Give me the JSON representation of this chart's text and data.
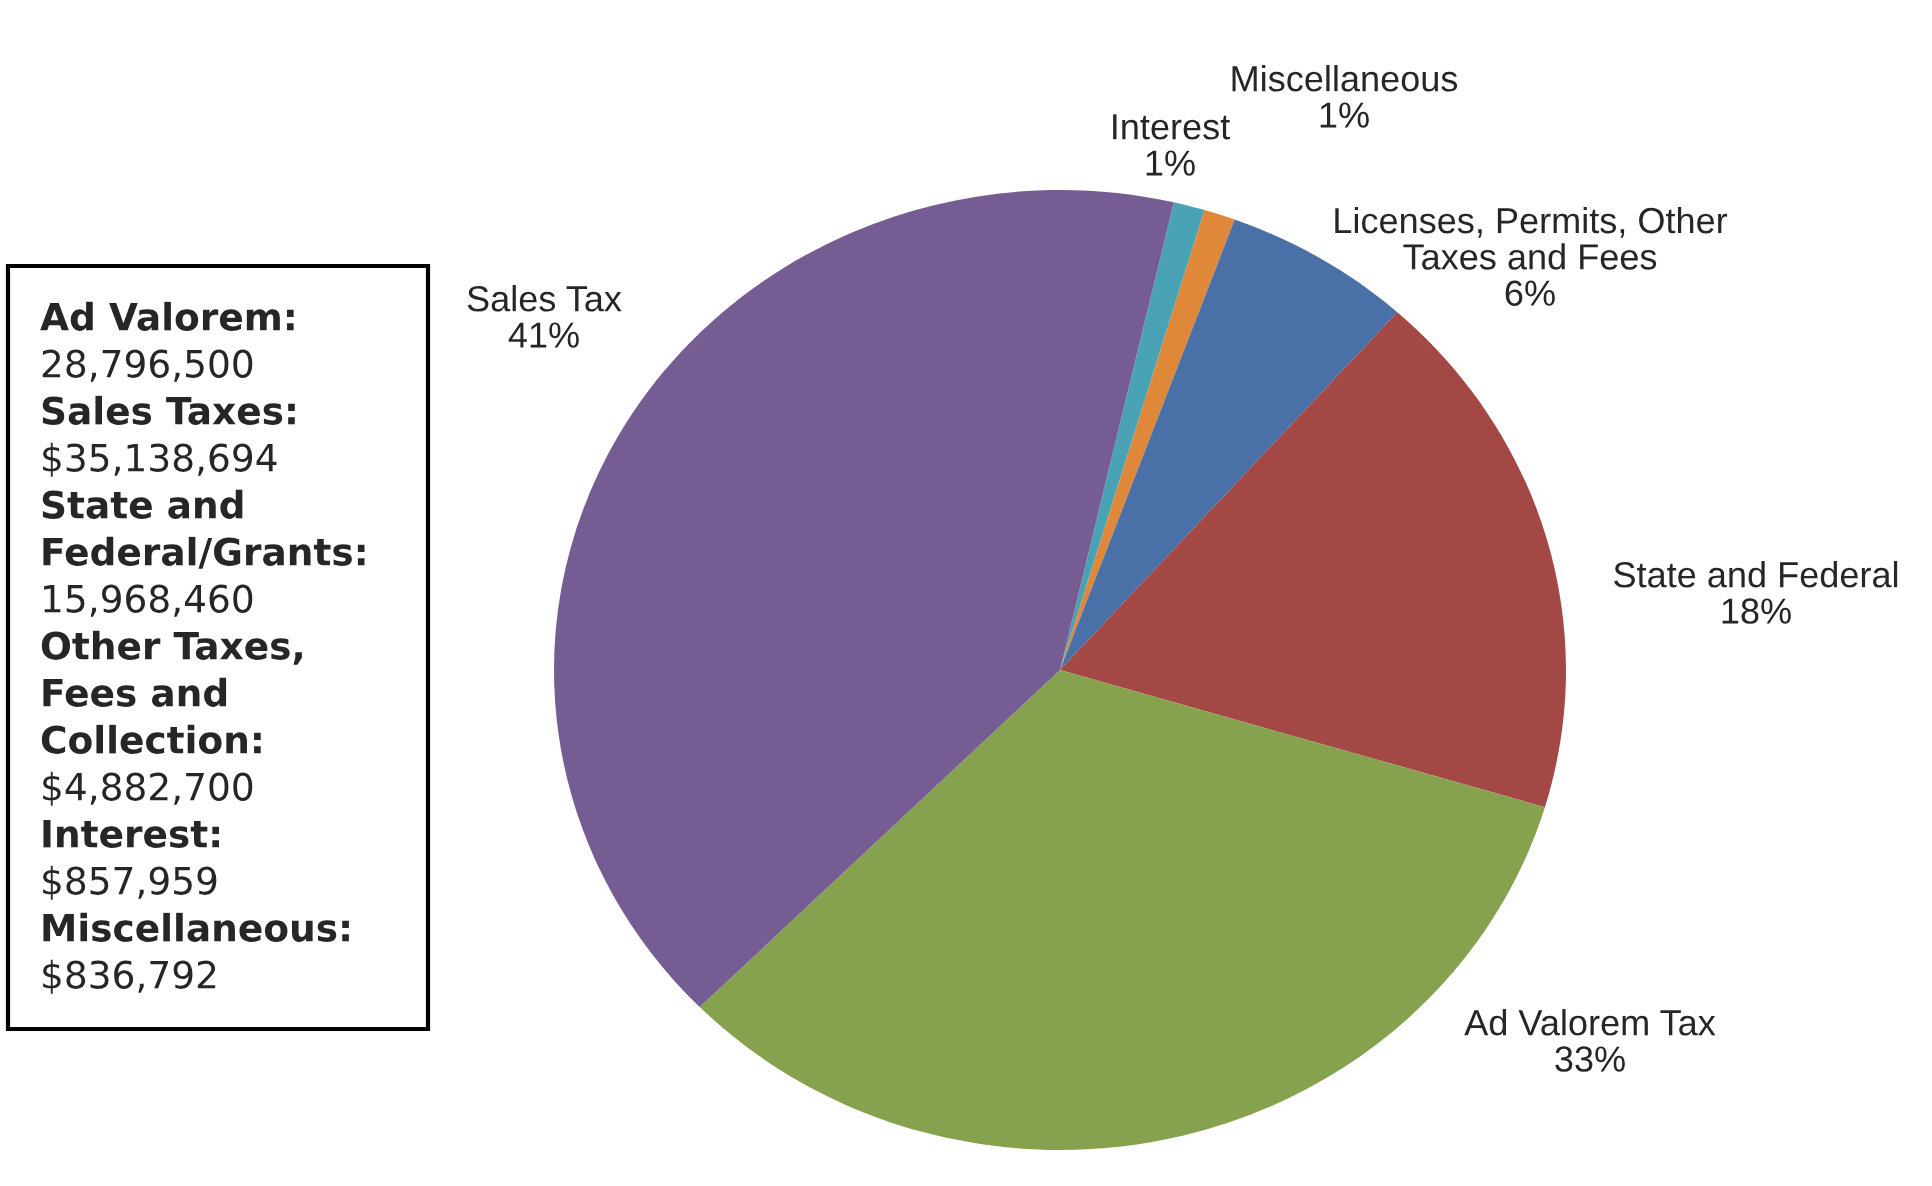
{
  "chart_data": {
    "type": "pie",
    "categories": [
      "Interest",
      "Miscellaneous",
      "Licenses, Permits, Other\nTaxes and Fees",
      "State and Federal",
      "Ad Valorem Tax",
      "Sales Tax"
    ],
    "values": [
      1,
      1,
      6,
      18,
      33,
      41
    ],
    "value_labels": [
      "1%",
      "1%",
      "6%",
      "18%",
      "33%",
      "41%"
    ],
    "colors": [
      "#4aa3b5",
      "#e0883a",
      "#4a70a8",
      "#a34845",
      "#86a24e",
      "#755c92"
    ],
    "legend": false,
    "annotations": [
      "Ad Valorem:",
      "28,796,500",
      "Sales Taxes:",
      "$35,138,694",
      "State and\nFederal/Grants:",
      "15,968,460",
      "Other Taxes,\nFees and\nCollection:",
      "$4,882,700",
      "Interest:",
      "$857,959",
      "Miscellaneous:",
      "$836,792"
    ]
  }
}
